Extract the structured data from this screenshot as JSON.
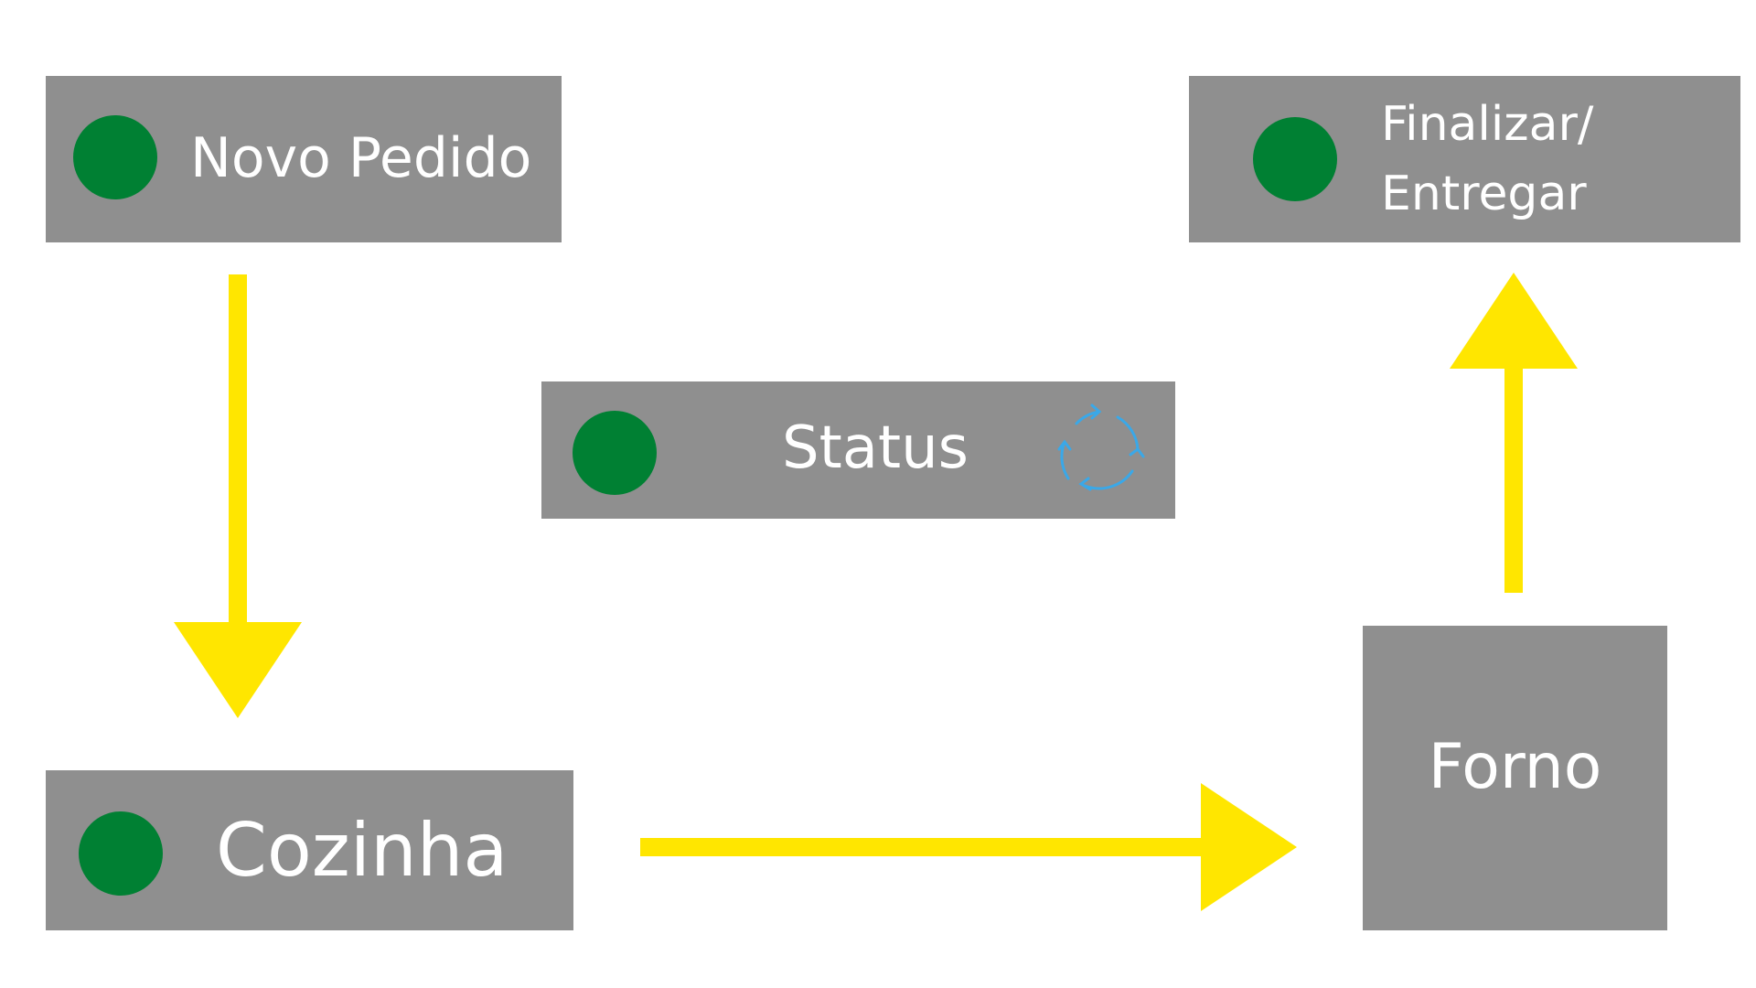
{
  "colors": {
    "box_fill": "#8f8f8f",
    "status_dot": "#008033",
    "arrow": "#ffe600",
    "refresh_icon": "#3aa8e8",
    "text": "#ffffff"
  },
  "nodes": {
    "novo_pedido": {
      "label": "Novo Pedido",
      "has_status_dot": true
    },
    "finalizar": {
      "label_line1": "Finalizar/",
      "label_line2": "Entregar",
      "has_status_dot": true
    },
    "status": {
      "label": "Status",
      "has_status_dot": true,
      "icon": "refresh-icon"
    },
    "cozinha": {
      "label": "Cozinha",
      "has_status_dot": true
    },
    "forno": {
      "label": "Forno",
      "has_status_dot": false
    }
  },
  "flow": [
    {
      "from": "Novo Pedido",
      "to": "Cozinha"
    },
    {
      "from": "Cozinha",
      "to": "Forno"
    },
    {
      "from": "Forno",
      "to": "Finalizar/ Entregar"
    }
  ]
}
